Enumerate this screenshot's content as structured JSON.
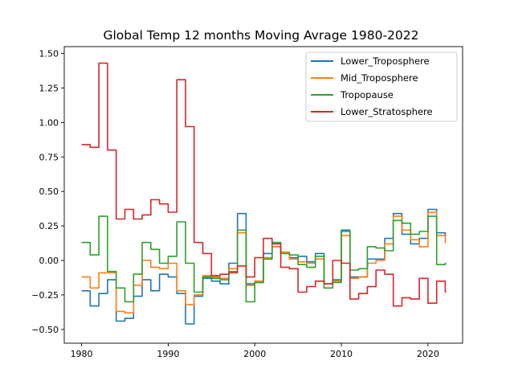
{
  "chart_data": {
    "type": "line",
    "title": "Global Temp 12 months  Moving Avrage 1980-2022",
    "xlabel": "",
    "ylabel": "",
    "xlim": [
      1978,
      2024
    ],
    "ylim": [
      -0.6,
      1.55
    ],
    "x_ticks": [
      1980,
      1990,
      2000,
      2010,
      2020
    ],
    "y_ticks": [
      -0.5,
      -0.25,
      0.0,
      0.25,
      0.5,
      0.75,
      1.0,
      1.25,
      1.5
    ],
    "y_tick_labels": [
      "−0.50",
      "−0.25",
      "0.00",
      "0.25",
      "0.50",
      "0.75",
      "1.00",
      "1.25",
      "1.50"
    ],
    "grid": false,
    "legend_position": "top-right",
    "x": [
      1980,
      1981,
      1982,
      1983,
      1984,
      1985,
      1986,
      1987,
      1988,
      1989,
      1990,
      1991,
      1992,
      1993,
      1994,
      1995,
      1996,
      1997,
      1998,
      1999,
      2000,
      2001,
      2002,
      2003,
      2004,
      2005,
      2006,
      2007,
      2008,
      2009,
      2010,
      2011,
      2012,
      2013,
      2014,
      2015,
      2016,
      2017,
      2018,
      2019,
      2020,
      2021,
      2022
    ],
    "series": [
      {
        "name": "Lower_Troposphere",
        "color": "#1f77b4",
        "values": [
          -0.22,
          -0.33,
          -0.24,
          -0.14,
          -0.44,
          -0.42,
          -0.26,
          -0.14,
          -0.22,
          -0.1,
          -0.12,
          -0.24,
          -0.46,
          -0.26,
          -0.13,
          -0.15,
          -0.17,
          -0.02,
          0.34,
          -0.17,
          -0.16,
          0.05,
          0.1,
          0.06,
          0.02,
          0.03,
          -0.01,
          0.05,
          -0.17,
          -0.14,
          0.22,
          -0.12,
          -0.12,
          0.01,
          0.01,
          0.16,
          0.34,
          0.19,
          0.12,
          0.16,
          0.37,
          0.2,
          0.18
        ]
      },
      {
        "name": "Mid_Troposphere",
        "color": "#ff7f0e",
        "values": [
          -0.12,
          -0.2,
          -0.09,
          -0.09,
          -0.37,
          -0.38,
          -0.18,
          0.0,
          -0.05,
          -0.06,
          -0.02,
          -0.22,
          -0.32,
          -0.25,
          -0.11,
          -0.12,
          -0.13,
          -0.06,
          0.2,
          -0.18,
          -0.15,
          0.02,
          0.1,
          0.06,
          0.01,
          -0.01,
          -0.02,
          0.01,
          -0.17,
          -0.15,
          0.18,
          -0.13,
          -0.12,
          -0.02,
          0.0,
          0.12,
          0.32,
          0.22,
          0.15,
          0.1,
          0.35,
          0.18,
          0.13
        ]
      },
      {
        "name": "Tropopause",
        "color": "#2ca02c",
        "values": [
          0.13,
          0.04,
          0.32,
          -0.08,
          -0.2,
          -0.3,
          -0.1,
          0.13,
          0.08,
          -0.02,
          0.03,
          0.28,
          -0.02,
          -0.23,
          -0.12,
          -0.13,
          -0.14,
          -0.08,
          0.22,
          -0.3,
          -0.16,
          0.01,
          0.13,
          0.05,
          0.04,
          -0.03,
          -0.05,
          0.03,
          -0.2,
          -0.16,
          0.21,
          -0.07,
          -0.06,
          0.1,
          0.09,
          0.07,
          0.29,
          0.27,
          0.19,
          0.21,
          0.32,
          -0.03,
          -0.02
        ]
      },
      {
        "name": "Lower_Stratosphere",
        "color": "#d62728",
        "values": [
          0.84,
          0.82,
          1.43,
          0.8,
          0.3,
          0.37,
          0.3,
          0.33,
          0.44,
          0.41,
          0.35,
          1.31,
          0.97,
          0.13,
          0.05,
          -0.11,
          -0.1,
          -0.09,
          -0.04,
          -0.12,
          0.02,
          0.16,
          0.12,
          -0.05,
          -0.06,
          -0.23,
          -0.19,
          -0.15,
          -0.17,
          0.0,
          -0.02,
          -0.28,
          -0.24,
          -0.19,
          -0.07,
          -0.1,
          -0.33,
          -0.27,
          -0.28,
          -0.13,
          -0.31,
          -0.15,
          -0.23
        ]
      }
    ]
  }
}
